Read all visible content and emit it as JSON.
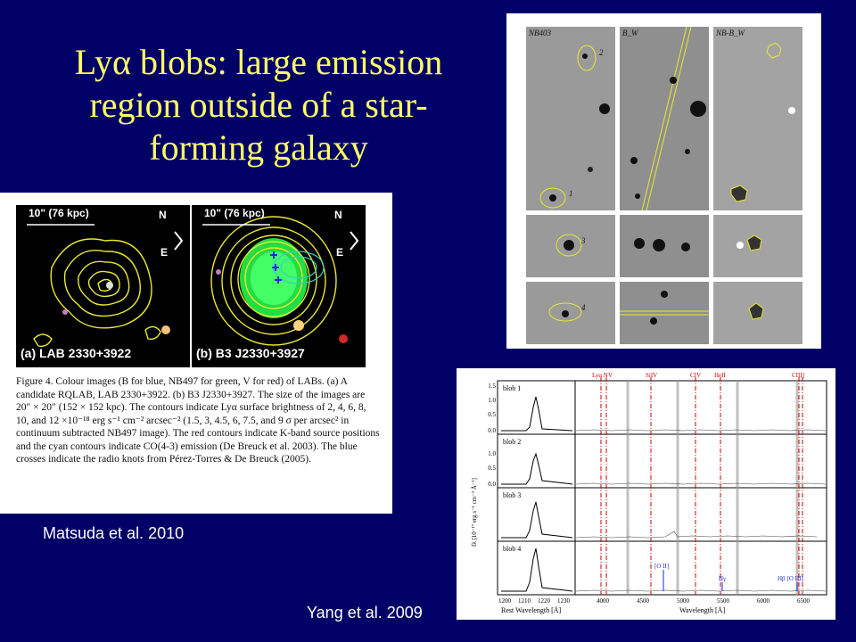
{
  "title": {
    "line1": "Lyα blobs: large emission",
    "line2": "region outside of a star-",
    "line3": "forming galaxy"
  },
  "left_figure": {
    "panel_a": {
      "scale": "10\" (76 kpc)",
      "label": "(a) LAB 2330+3922",
      "north": "N",
      "east": "E"
    },
    "panel_b": {
      "scale": "10\" (76 kpc)",
      "label": "(b) B3 J2330+3927",
      "north": "N",
      "east": "E"
    },
    "caption": "Figure 4. Colour images (B for blue, NB497 for green, V for red) of LABs. (a) A candidate RQLAB, LAB 2330+3922. (b) B3 J2330+3927. The size of the images are 20″ × 20″ (152 × 152 kpc). The contours indicate Lyα surface brightness of 2, 4, 6, 8, 10, and 12 ×10⁻¹⁸ erg s⁻¹ cm⁻² arcsec⁻² (1.5, 3, 4.5, 6, 7.5, and 9 σ per arcsec² in continuum subtracted NB497 image). The red contours indicate K-band source positions and the cyan contours indicate CO(4-3) emission (De Breuck et al. 2003). The blue crosses indicate the radio knots from Pérez-Torres & De Breuck (2005)."
  },
  "credits": {
    "left": "Matsuda et al. 2010",
    "right": "Yang et al. 2009"
  },
  "top_right_figure": {
    "col_labels": [
      "NB403",
      "B_W",
      "NB-B_W"
    ],
    "markers": [
      "2",
      "1",
      "3",
      "4"
    ]
  },
  "spectra_figure": {
    "blobs": [
      "blob 1",
      "blob 2",
      "blob 3",
      "blob 4"
    ],
    "lines_top": [
      "Lyα NV",
      "SiIV",
      "CIV",
      "HeII",
      "CIII]"
    ],
    "lines_bottom": [
      "[O II]",
      "Hγ",
      "Hβ [O III]"
    ],
    "ylabel": "fλ [10⁻¹⁷ erg s⁻¹ cm⁻² Å⁻¹]",
    "xlabel_left": "Rest Wavelength [Å]",
    "xlabel_right": "Wavelength [Å]",
    "xticks_left": [
      "1200",
      "1210",
      "1220",
      "1230"
    ],
    "xticks_right": [
      "4000",
      "4500",
      "5000",
      "5500",
      "6000",
      "6500"
    ],
    "yticks_top": [
      "1.5",
      "1.0",
      "0.5",
      "0.0"
    ],
    "yticks_mid": [
      "1.0",
      "0.5",
      "0.0"
    ]
  },
  "colors": {
    "background": "#000066",
    "title": "#FFFF66",
    "contour": "#E8E830",
    "spectral_line": "#CC0000"
  }
}
